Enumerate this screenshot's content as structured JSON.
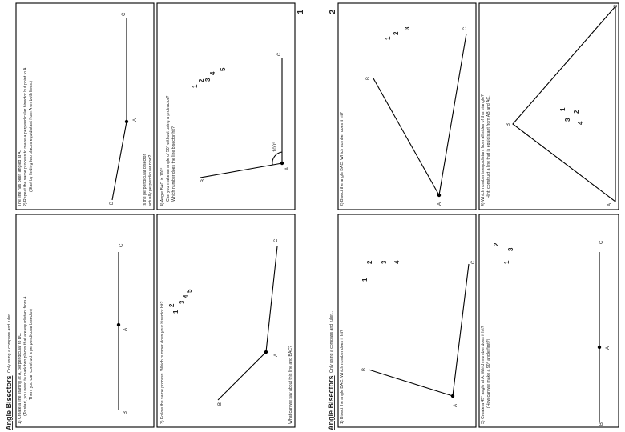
{
  "sheets": [
    {
      "page_number": "1",
      "title": "Angle Bisectors",
      "subtitle": "Only using a compass and ruler...",
      "panels": [
        {
          "instructions": [
            "1) Create a line starting at A, perpendicular to BC.",
            "(To start, you need to mark two places that are equidistant from A.",
            "Then, you can construct a perpendicular bisector)"
          ],
          "labels": [
            "B",
            "A",
            "C"
          ]
        },
        {
          "instructions": [
            "The line has been angled at A.",
            "2) Repeat the same process to make a perpendicular bisector but point to A.",
            "(Start by finding two places equidistant from A on both lines.)"
          ],
          "footer": [
            "Is the perpendicular bisector",
            "actually perpendicular now?"
          ],
          "labels": [
            "B",
            "A",
            "C"
          ]
        },
        {
          "instructions": [
            "3) Follow the same process. Which number does your bisector hit?"
          ],
          "numbers": [
            "1",
            "2",
            "3",
            "4",
            "5"
          ],
          "footer": [
            "What can we say about this line and BAC?"
          ],
          "labels": [
            "B",
            "A",
            "C"
          ]
        },
        {
          "instructions": [
            "4) Angle BAC is 100°.",
            "Can you make an angle of 50° without using a protractor?",
            "Which number does the line bisector hit?"
          ],
          "angle_label": "100°",
          "numbers": [
            "1",
            "2",
            "3",
            "4",
            "5"
          ],
          "labels": [
            "B",
            "A",
            "C"
          ]
        }
      ]
    },
    {
      "page_number": "2",
      "title": "Angle Bisectors",
      "subtitle": "Only using a compass and ruler...",
      "panels": [
        {
          "instructions": [
            "1) Bisect the angle BAC. Which number does it hit?"
          ],
          "numbers": [
            "1",
            "2",
            "3",
            "4"
          ],
          "labels": [
            "B",
            "A",
            "C"
          ]
        },
        {
          "instructions": [
            "2) Bisect the angle BAC. Which number does it hit?"
          ],
          "numbers": [
            "1",
            "2",
            "3"
          ],
          "labels": [
            "B",
            "A",
            "C"
          ]
        },
        {
          "instructions": [
            "3) Create a 45° angle at A. Which number does it hit?",
            "(How can we make a 90° angle first?)"
          ],
          "numbers": [
            "1",
            "2",
            "3"
          ],
          "labels": [
            "B",
            "A",
            "C"
          ]
        },
        {
          "instructions": [
            "4) Which number is equidistant from all sides of this triangle?",
            "Hint: construct a line that is equidistant from AB and AC."
          ],
          "numbers": [
            "1",
            "2",
            "3",
            "4"
          ],
          "labels": [
            "B",
            "A",
            "C"
          ]
        }
      ]
    }
  ]
}
